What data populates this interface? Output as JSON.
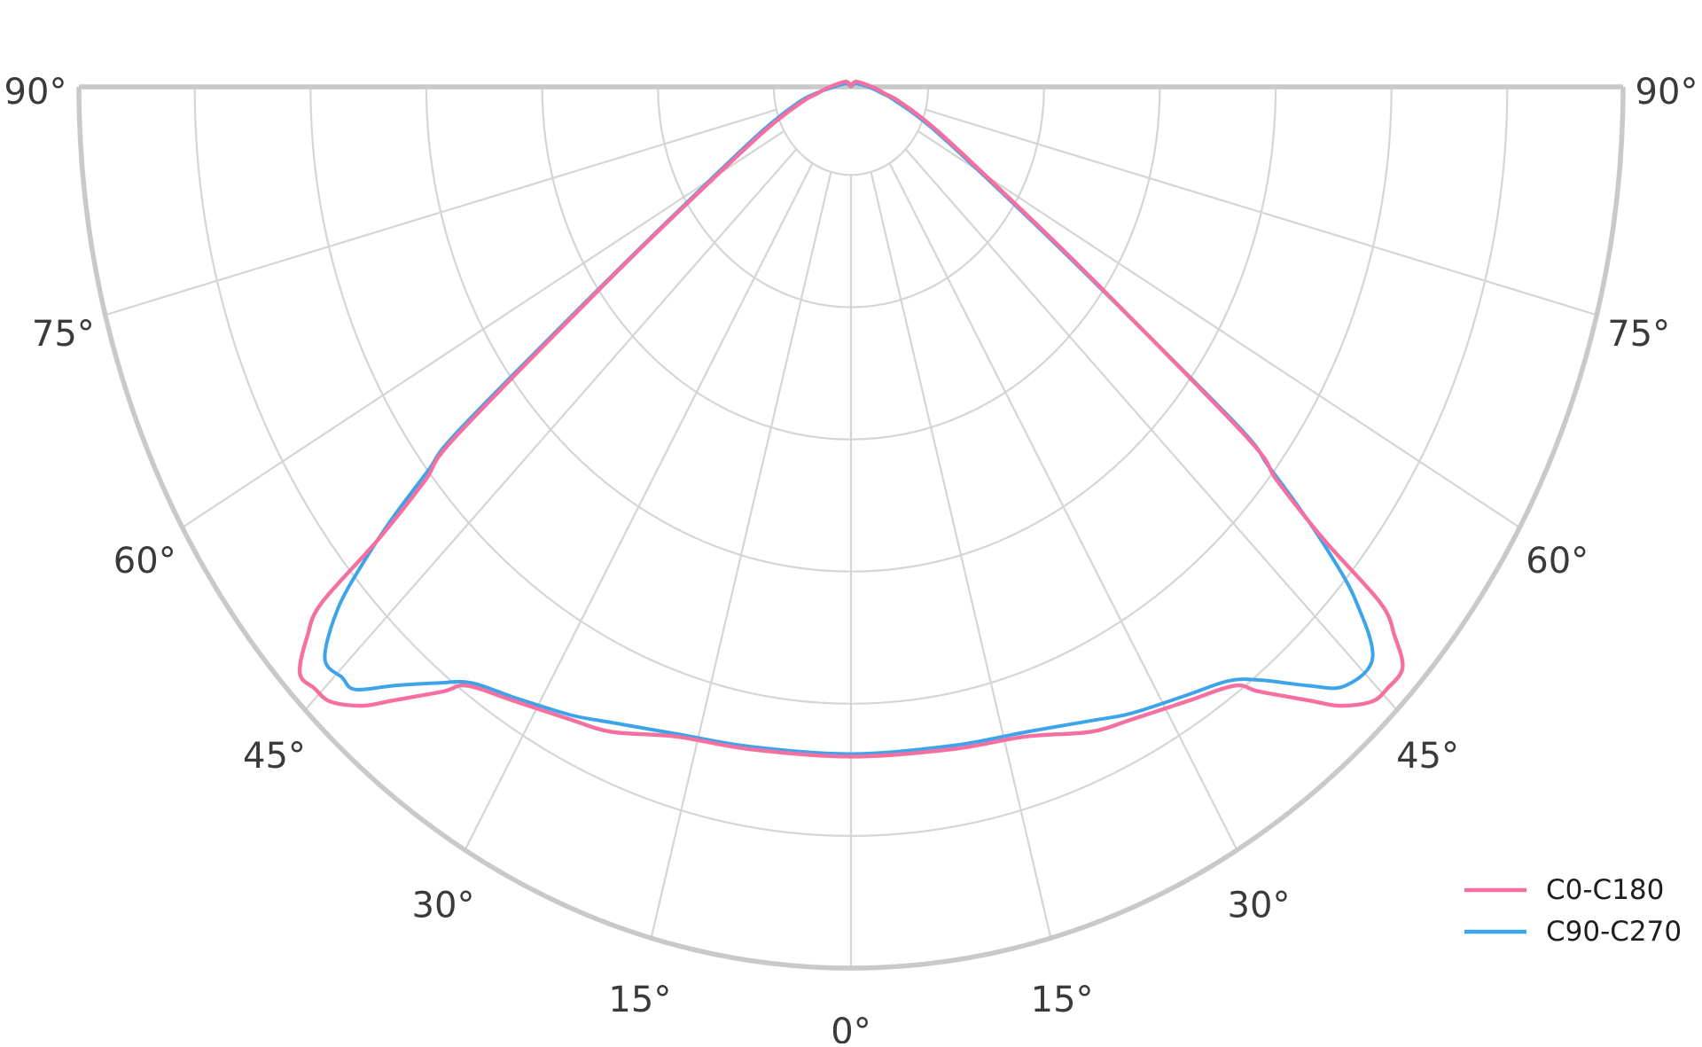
{
  "chart_data": {
    "type": "polar_photometric_curve",
    "title": "",
    "angle_unit": "degrees",
    "angle_zero_direction": "down (nadir at bottom, 90° horizontal)",
    "angle_range": [
      -90,
      90
    ],
    "angle_gridline_step_deg": 15,
    "radial_rings_pct": [
      10,
      25,
      40,
      55,
      70,
      85
    ],
    "radial_value_labels_shown": false,
    "r_max_fraction": 1.0,
    "grid_on": true,
    "legend_position": "bottom-right",
    "angle_tick_labels": [
      {
        "angle": -90,
        "text": "90°"
      },
      {
        "angle": -75,
        "text": "75°"
      },
      {
        "angle": -60,
        "text": "60°"
      },
      {
        "angle": -45,
        "text": "45°"
      },
      {
        "angle": -30,
        "text": "30°"
      },
      {
        "angle": -15,
        "text": "15°"
      },
      {
        "angle": 0,
        "text": "0°"
      },
      {
        "angle": 15,
        "text": "15°"
      },
      {
        "angle": 30,
        "text": "30°"
      },
      {
        "angle": 45,
        "text": "45°"
      },
      {
        "angle": 60,
        "text": "60°"
      },
      {
        "angle": 75,
        "text": "75°"
      },
      {
        "angle": 90,
        "text": "90°"
      }
    ],
    "series": [
      {
        "name": "C0-C180",
        "color": "#f56fa1",
        "points_angle_fraction": [
          [
            131,
            0.009
          ],
          [
            180,
            0.001
          ],
          [
            -131,
            0.009
          ],
          [
            -88,
            0.03
          ],
          [
            -80,
            0.045
          ],
          [
            -75,
            0.065
          ],
          [
            -66,
            0.122
          ],
          [
            -58,
            0.252
          ],
          [
            -55,
            0.387
          ],
          [
            -52.2,
            0.649
          ],
          [
            -51,
            0.71
          ],
          [
            -50,
            0.8
          ],
          [
            -49.5,
            0.902
          ],
          [
            -48.5,
            0.94
          ],
          [
            -47,
            0.976
          ],
          [
            -45.5,
            0.974
          ],
          [
            -44,
            0.97
          ],
          [
            -42,
            0.945
          ],
          [
            -40.5,
            0.916
          ],
          [
            -37.6,
            0.866
          ],
          [
            -36.2,
            0.842
          ],
          [
            -32,
            0.822
          ],
          [
            -27,
            0.805
          ],
          [
            -23,
            0.795
          ],
          [
            -17,
            0.771
          ],
          [
            -10,
            0.763
          ],
          [
            0,
            0.76
          ],
          [
            10,
            0.763
          ],
          [
            17,
            0.771
          ],
          [
            23,
            0.795
          ],
          [
            27,
            0.805
          ],
          [
            32,
            0.822
          ],
          [
            36.2,
            0.842
          ],
          [
            37.6,
            0.866
          ],
          [
            40.5,
            0.916
          ],
          [
            42,
            0.945
          ],
          [
            44,
            0.97
          ],
          [
            45.5,
            0.974
          ],
          [
            47.3,
            0.972
          ],
          [
            48.5,
            0.94
          ],
          [
            49.5,
            0.902
          ],
          [
            50,
            0.8
          ],
          [
            51,
            0.71
          ],
          [
            52.2,
            0.649
          ],
          [
            55,
            0.387
          ],
          [
            58,
            0.252
          ],
          [
            66,
            0.122
          ],
          [
            75,
            0.065
          ],
          [
            80,
            0.045
          ],
          [
            88,
            0.03
          ]
        ]
      },
      {
        "name": "C90-C270",
        "color": "#3ea4ea",
        "points_angle_fraction": [
          [
            120,
            0.0075
          ],
          [
            180,
            0.0005
          ],
          [
            -120,
            0.0075
          ],
          [
            -88,
            0.025
          ],
          [
            -80,
            0.05
          ],
          [
            -75,
            0.072
          ],
          [
            -66,
            0.13
          ],
          [
            -58,
            0.259
          ],
          [
            -55,
            0.396
          ],
          [
            -52.5,
            0.64
          ],
          [
            -51.5,
            0.7
          ],
          [
            -50.5,
            0.77
          ],
          [
            -49.5,
            0.83
          ],
          [
            -48.3,
            0.89
          ],
          [
            -46.4,
            0.941
          ],
          [
            -44.5,
            0.94
          ],
          [
            -43.2,
            0.938
          ],
          [
            -41,
            0.9
          ],
          [
            -38.3,
            0.862
          ],
          [
            -36,
            0.836
          ],
          [
            -32,
            0.818
          ],
          [
            -27,
            0.8
          ],
          [
            -23.5,
            0.786
          ],
          [
            -17,
            0.768
          ],
          [
            -10,
            0.76
          ],
          [
            0,
            0.757
          ],
          [
            10,
            0.759
          ],
          [
            17,
            0.766
          ],
          [
            23.5,
            0.784
          ],
          [
            27,
            0.798
          ],
          [
            32,
            0.815
          ],
          [
            36,
            0.833
          ],
          [
            38.3,
            0.858
          ],
          [
            41,
            0.9
          ],
          [
            43.2,
            0.933
          ],
          [
            46.2,
            0.936
          ],
          [
            48.3,
            0.875
          ],
          [
            49.5,
            0.815
          ],
          [
            50.5,
            0.755
          ],
          [
            51.5,
            0.69
          ],
          [
            52.5,
            0.63
          ],
          [
            55,
            0.378
          ],
          [
            58,
            0.243
          ],
          [
            66,
            0.115
          ],
          [
            75,
            0.058
          ],
          [
            80,
            0.04
          ],
          [
            88,
            0.025
          ]
        ]
      }
    ]
  },
  "legend": {
    "items": [
      {
        "label": "C0-C180",
        "color": "#f56fa1"
      },
      {
        "label": "C90-C270",
        "color": "#3ea4ea"
      }
    ]
  },
  "colors": {
    "background": "#ffffff",
    "grid_line": "#d5d5d5",
    "outer_boundary": "#c9c9c9",
    "angle_label_text": "#3a3a3a",
    "legend_text": "#1e1e1e"
  }
}
